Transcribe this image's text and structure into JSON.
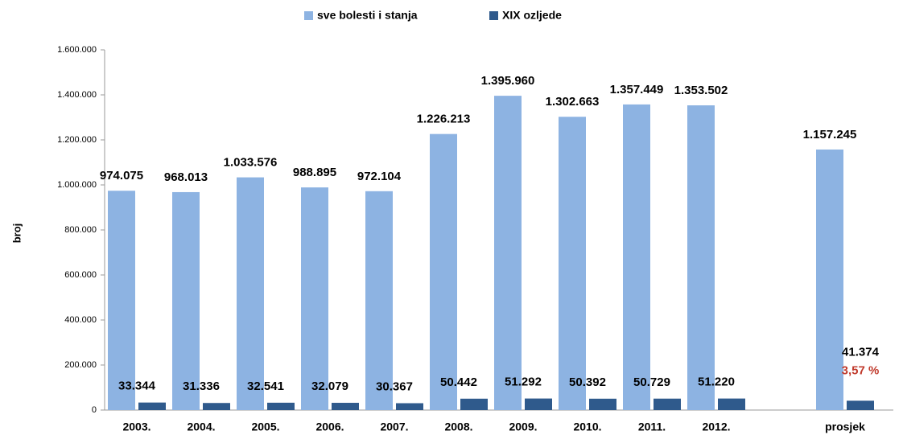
{
  "chart_data": {
    "type": "bar",
    "y_label": "broj",
    "categories": [
      "2003.",
      "2004.",
      "2005.",
      "2006.",
      "2007.",
      "2008.",
      "2009.",
      "2010.",
      "2011.",
      "2012.",
      null,
      "prosjek"
    ],
    "series": [
      {
        "name": "sve bolesti i stanja",
        "color": "#8db3e2",
        "values": [
          974075,
          968013,
          1033576,
          988895,
          972104,
          1226213,
          1395960,
          1302663,
          1357449,
          1353502,
          null,
          1157245
        ],
        "value_labels": [
          "974.075",
          "968.013",
          "1.033.576",
          "988.895",
          "972.104",
          "1.226.213",
          "1.395.960",
          "1.302.663",
          "1.357.449",
          "1.353.502",
          null,
          "1.157.245"
        ]
      },
      {
        "name": "XIX ozljede",
        "color": "#2f5a8c",
        "values": [
          33344,
          31336,
          32541,
          32079,
          30367,
          50442,
          51292,
          50392,
          50729,
          51220,
          null,
          41374
        ],
        "value_labels": [
          "33.344",
          "31.336",
          "32.541",
          "32.079",
          "30.367",
          "50.442",
          "51.292",
          "50.392",
          "50.729",
          "51.220",
          null,
          "41.374"
        ]
      }
    ],
    "annotations": [
      "3,57 %"
    ],
    "ylim": [
      0,
      1600000
    ],
    "yticks": [
      0,
      {
        "value": 200000,
        "label": "200.000"
      },
      {
        "value": 400000,
        "label": "400.000"
      },
      {
        "value": 600000,
        "label": "600.000"
      },
      {
        "value": 800000,
        "label": "800.000"
      },
      {
        "value": 1000000,
        "label": "1.000.000"
      },
      {
        "value": 1200000,
        "label": "1.200.000"
      },
      {
        "value": 1400000,
        "label": "1.400.000"
      },
      {
        "value": 1600000,
        "label": "1.600.000"
      }
    ],
    "grid": false,
    "legend": "top"
  }
}
